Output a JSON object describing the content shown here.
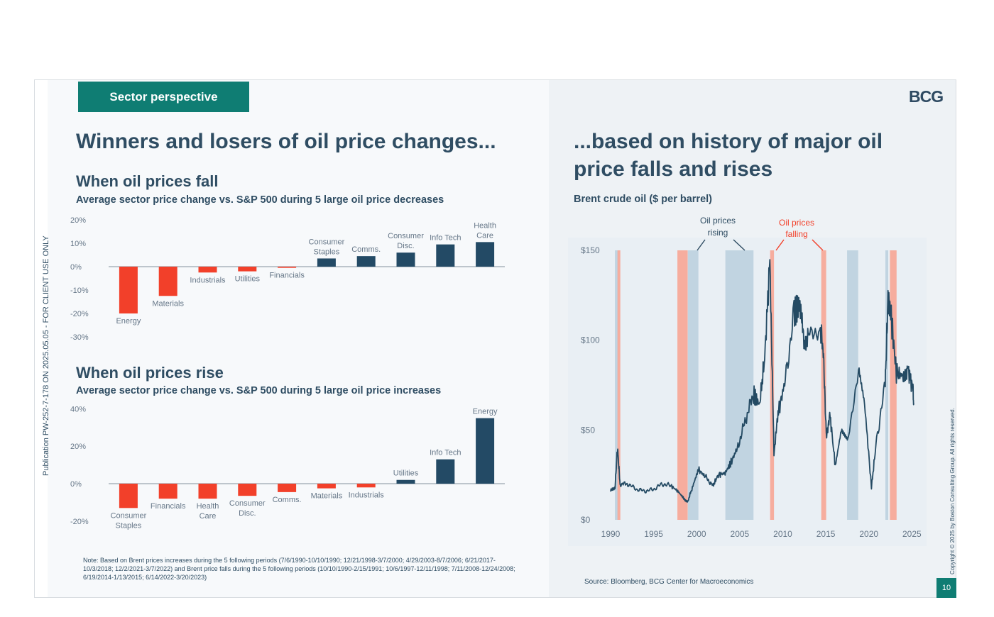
{
  "header": {
    "tag": "Sector perspective",
    "logo": "BCG",
    "left_title": "Winners and losers of oil price changes...",
    "right_title_line1": "...based on history of major oil",
    "right_title_line2": "price falls and rises"
  },
  "fall_section": {
    "heading": "When oil prices fall",
    "subtitle": "Average sector price change vs. S&P 500 during 5 large oil price decreases"
  },
  "rise_section": {
    "heading": "When oil prices rise",
    "subtitle": "Average sector price change vs. S&P 500 during 5 large oil price increases"
  },
  "right_section": {
    "subtitle": "Brent crude oil ($ per barrel)",
    "annotation_rising_1": "Oil prices",
    "annotation_rising_2": "rising",
    "annotation_falling_1": "Oil prices",
    "annotation_falling_2": "falling"
  },
  "note": "Note: Based on Brent prices increases during the 5 following periods (7/6/1990-10/10/1990; 12/21/1998-3/7/2000; 4/29/2003-8/7/2006; 6/21/2017-10/3/2018; 12/2/2021-3/7/2022) and Brent price falls during the 5 following periods (10/10/1990-2/15/1991; 10/6/1997-12/11/1998; 7/11/2008-12/24/2008; 6/19/2014-1/13/2015; 6/14/2022-3/20/2023)",
  "source": "Source: Bloomberg, BCG Center for Macroeconomics",
  "page_number": "10",
  "side_left": "Publication PW-252-7-178 ON 2025.05.05 - FOR CLIENT USE ONLY",
  "side_right": "Copyright © 2025 by Boston Consulting Group. All rights reserved.",
  "colors": {
    "negative": "#f2402a",
    "positive": "#234a65",
    "teal": "#0f7d73",
    "rising_band": "#b7cddc",
    "falling_band": "#f7a595",
    "line": "#244a63"
  },
  "chart_data": [
    {
      "type": "bar",
      "yticks": [
        "20%",
        "10%",
        "0%",
        "-10%",
        "-20%",
        "-30%"
      ],
      "ylim": [
        -30,
        20
      ],
      "categories": [
        {
          "label": [
            "Energy"
          ],
          "value": -20
        },
        {
          "label": [
            "Materials"
          ],
          "value": -12.5
        },
        {
          "label": [
            "Industrials"
          ],
          "value": -2.5
        },
        {
          "label": [
            "Utilities"
          ],
          "value": -2
        },
        {
          "label": [
            "Financials"
          ],
          "value": -0.5
        },
        {
          "label": [
            "Consumer",
            "Staples"
          ],
          "value": 3.5
        },
        {
          "label": [
            "Comms."
          ],
          "value": 4.5
        },
        {
          "label": [
            "Consumer",
            "Disc."
          ],
          "value": 6
        },
        {
          "label": [
            "Info Tech"
          ],
          "value": 9.5
        },
        {
          "label": [
            "Health",
            "Care"
          ],
          "value": 10.5
        }
      ]
    },
    {
      "type": "bar",
      "yticks": [
        "40%",
        "20%",
        "0%",
        "-20%"
      ],
      "ylim": [
        -20,
        40
      ],
      "categories": [
        {
          "label": [
            "Consumer",
            "Staples"
          ],
          "value": -13
        },
        {
          "label": [
            "Financials"
          ],
          "value": -8
        },
        {
          "label": [
            "Health",
            "Care"
          ],
          "value": -8
        },
        {
          "label": [
            "Consumer",
            "Disc."
          ],
          "value": -6.5
        },
        {
          "label": [
            "Comms."
          ],
          "value": -4.5
        },
        {
          "label": [
            "Materials"
          ],
          "value": -2.5
        },
        {
          "label": [
            "Industrials"
          ],
          "value": -2
        },
        {
          "label": [
            "Utilities"
          ],
          "value": 2
        },
        {
          "label": [
            "Info Tech"
          ],
          "value": 13
        },
        {
          "label": [
            "Energy"
          ],
          "value": 35
        }
      ]
    },
    {
      "type": "line",
      "yticks": [
        {
          "label": "$150",
          "value": 150
        },
        {
          "label": "$100",
          "value": 100
        },
        {
          "label": "$50",
          "value": 50
        },
        {
          "label": "$0",
          "value": 0
        }
      ],
      "xticks": [
        1990,
        1995,
        2000,
        2005,
        2010,
        2015,
        2020,
        2025
      ],
      "xlim": [
        1990,
        2025.3
      ],
      "ylim": [
        0,
        150
      ],
      "rising_periods": [
        [
          1990.5,
          1990.8
        ],
        [
          1998.97,
          2000.2
        ],
        [
          2003.33,
          2006.6
        ],
        [
          2017.47,
          2018.76
        ],
        [
          2021.92,
          2022.18
        ]
      ],
      "falling_periods": [
        [
          1990.8,
          1991.13
        ],
        [
          1997.76,
          1998.95
        ],
        [
          2008.53,
          2008.98
        ],
        [
          2014.47,
          2015.04
        ],
        [
          2022.45,
          2023.22
        ]
      ],
      "series": [
        {
          "x": [
            1990.0,
            1990.5,
            1990.8,
            1991.1,
            1992,
            1993,
            1994,
            1995,
            1996,
            1997,
            1997.8,
            1998.5,
            1998.95,
            1999.5,
            2000.2,
            2001,
            2001.9,
            2002.5,
            2003.3,
            2004,
            2004.8,
            2005.7,
            2006.6,
            2007.3,
            2007.9,
            2008.5,
            2008.98,
            2009.5,
            2010.3,
            2011.3,
            2012,
            2012.5,
            2013,
            2014.3,
            2014.7,
            2015.05,
            2015.5,
            2016.1,
            2016.8,
            2017.5,
            2018.8,
            2019.5,
            2020.3,
            2020.9,
            2021.9,
            2022.2,
            2022.45,
            2023.2,
            2024,
            2024.5,
            2025.1,
            2025.2
          ],
          "y": [
            17,
            17,
            40,
            20,
            20,
            17,
            16,
            17,
            20,
            19,
            16,
            12,
            10,
            18,
            28,
            24,
            19,
            25,
            26,
            32,
            41,
            56,
            70,
            64,
            90,
            145,
            38,
            60,
            78,
            115,
            120,
            95,
            108,
            108,
            95,
            48,
            58,
            30,
            50,
            45,
            85,
            65,
            18,
            45,
            75,
            120,
            120,
            82,
            80,
            85,
            73,
            65
          ]
        }
      ]
    }
  ]
}
